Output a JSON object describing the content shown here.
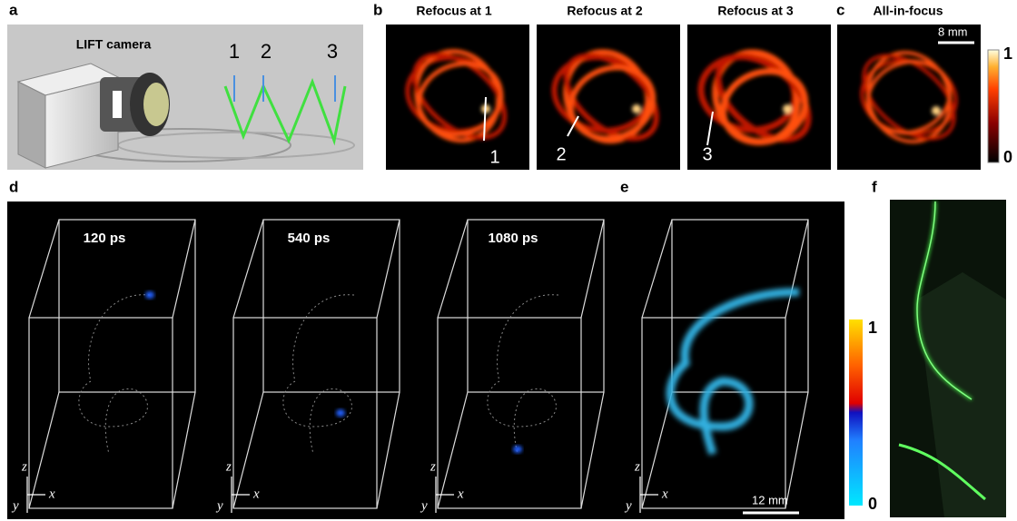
{
  "panels": {
    "a": {
      "label": "a",
      "camera_label": "LIFT camera",
      "depth_markers": [
        "1",
        "2",
        "3"
      ]
    },
    "b": {
      "label": "b",
      "images": [
        {
          "title": "Refocus at 1",
          "marker": "1"
        },
        {
          "title": "Refocus at 2",
          "marker": "2"
        },
        {
          "title": "Refocus at 3",
          "marker": "3"
        }
      ]
    },
    "c": {
      "label": "c",
      "title": "All-in-focus",
      "scale_bar": "8 mm",
      "colorbar": {
        "max": "1",
        "min": "0"
      }
    },
    "d": {
      "label": "d",
      "frames": [
        {
          "time": "120 ps"
        },
        {
          "time": "540 ps"
        },
        {
          "time": "1080 ps"
        }
      ],
      "axes": {
        "z": "z",
        "y": "y",
        "x": "x"
      }
    },
    "e": {
      "label": "e",
      "scale_bar": "12 mm",
      "colorbar": {
        "max": "1",
        "min": "0"
      }
    },
    "f": {
      "label": "f"
    }
  }
}
